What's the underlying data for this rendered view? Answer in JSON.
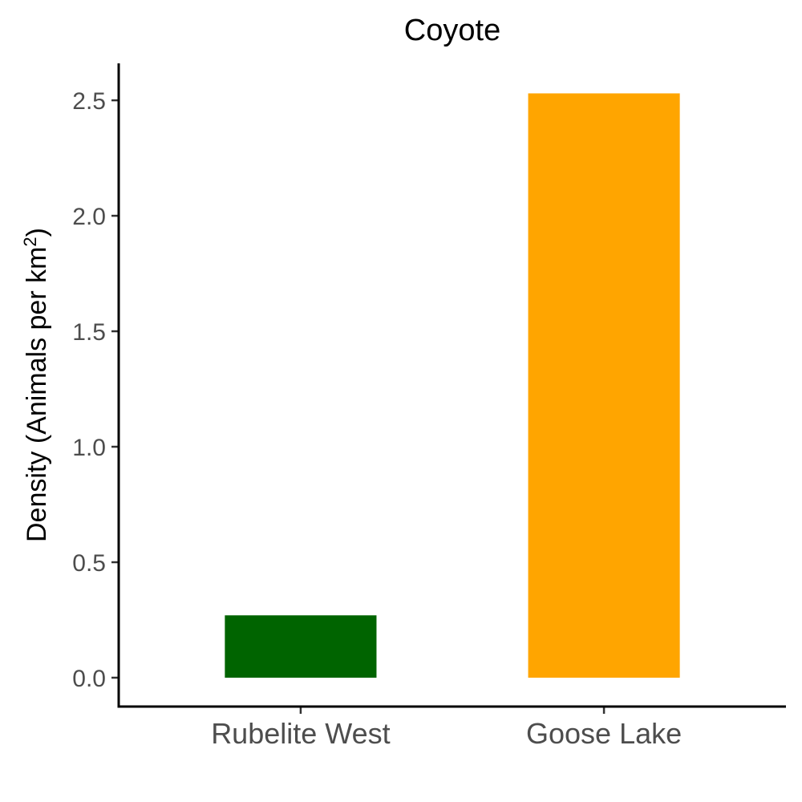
{
  "chart_data": {
    "type": "bar",
    "title": "Coyote",
    "xlabel": "",
    "ylabel": "Density (Animals per km",
    "ylabel_superscript": "2",
    "ylabel_suffix": ")",
    "categories": [
      "Rubelite West",
      "Goose Lake"
    ],
    "values": [
      0.27,
      2.53
    ],
    "colors": [
      "#006400",
      "#FFA500"
    ],
    "ylim": [
      -0.125,
      2.66
    ],
    "yticks": [
      0.0,
      0.5,
      1.0,
      1.5,
      2.0,
      2.5
    ],
    "ytick_labels": [
      "0.0",
      "0.5",
      "1.0",
      "1.5",
      "2.0",
      "2.5"
    ],
    "grid": false,
    "legend": "none"
  }
}
